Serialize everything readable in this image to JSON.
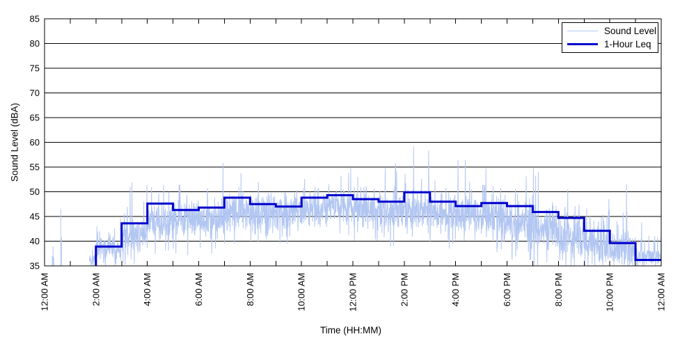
{
  "chart_data": {
    "type": "line",
    "title": "",
    "xlabel": "Time (HH:MM)",
    "ylabel": "Sound Level (dBA)",
    "x_axis": {
      "unit": "hours-from-midnight",
      "range_hours": [
        0,
        24
      ],
      "minor_tick_every_hours": 1,
      "major_tick_every_hours": 2,
      "tick_labels": [
        "12:00 AM",
        "2:00 AM",
        "4:00 AM",
        "6:00 AM",
        "8:00 AM",
        "10:00 AM",
        "12:00 PM",
        "2:00 PM",
        "4:00 PM",
        "6:00 PM",
        "8:00 PM",
        "10:00 PM",
        "12:00 AM"
      ],
      "tick_label_rotation_deg": -90
    },
    "y_axis": {
      "range": [
        35,
        85
      ],
      "tick_step": 5,
      "tick_labels": [
        "35",
        "40",
        "45",
        "50",
        "55",
        "60",
        "65",
        "70",
        "75",
        "80",
        "85"
      ]
    },
    "grid": {
      "horizontal": true,
      "vertical": false,
      "color": "#000000"
    },
    "legend": {
      "position": "top-right-inside",
      "entries": [
        "Sound Level",
        "1-Hour Leq"
      ]
    },
    "series": [
      {
        "name": "Sound Level",
        "color": "#b2c6f2",
        "line_width": 1,
        "kind": "noisy-fast-sound-trace",
        "continuous_from_hour": 1.75,
        "early_isolated_spikes_hour_dba": [
          [
            0.3,
            37.0
          ],
          [
            0.33,
            38.9
          ],
          [
            0.36,
            36.7
          ],
          [
            0.63,
            46.5
          ],
          [
            0.66,
            40.7
          ]
        ],
        "envelope_columns": [
          "start_hour",
          "end_hour",
          "typical_level_dba",
          "typical_half_range_dba",
          "occasional_peak_dba"
        ],
        "hourly_envelope_dba": [
          [
            1.75,
            2,
            36.3,
            1.2,
            39.0
          ],
          [
            2,
            3,
            38.5,
            2.3,
            46.0
          ],
          [
            3,
            4,
            41.5,
            3.3,
            52.5
          ],
          [
            4,
            5,
            44.3,
            3.8,
            52.5
          ],
          [
            5,
            6,
            44.3,
            3.8,
            52.0
          ],
          [
            6,
            7,
            44.5,
            3.8,
            57.5
          ],
          [
            7,
            8,
            46.0,
            3.8,
            55.5
          ],
          [
            8,
            9,
            46.0,
            3.4,
            52.0
          ],
          [
            9,
            10,
            45.6,
            3.4,
            52.0
          ],
          [
            10,
            11,
            46.4,
            3.4,
            53.0
          ],
          [
            11,
            12,
            47.0,
            3.4,
            61.0
          ],
          [
            12,
            13,
            46.5,
            3.4,
            53.5
          ],
          [
            13,
            14,
            46.0,
            3.8,
            56.0
          ],
          [
            14,
            15,
            46.4,
            3.8,
            59.5
          ],
          [
            15,
            16,
            45.6,
            3.8,
            53.0
          ],
          [
            16,
            17,
            45.0,
            3.8,
            56.5
          ],
          [
            17,
            18,
            45.0,
            3.8,
            55.0
          ],
          [
            18,
            19,
            44.0,
            4.2,
            54.5
          ],
          [
            19,
            20,
            42.5,
            4.4,
            55.0
          ],
          [
            20,
            21,
            40.5,
            4.8,
            50.5
          ],
          [
            21,
            22,
            39.5,
            4.5,
            50.0
          ],
          [
            22,
            23,
            38.5,
            4.0,
            52.5
          ],
          [
            23,
            24,
            37.0,
            1.8,
            44.0
          ]
        ]
      },
      {
        "name": "1-Hour Leq",
        "color": "#0000cc",
        "line_width": 3,
        "kind": "hourly-step",
        "step_start_hours": [
          2,
          3,
          4,
          5,
          6,
          7,
          8,
          9,
          10,
          11,
          12,
          13,
          14,
          15,
          16,
          17,
          18,
          19,
          20,
          21,
          22,
          23
        ],
        "leq_dba": [
          38.9,
          43.6,
          47.6,
          46.3,
          46.8,
          48.8,
          47.5,
          47.0,
          48.8,
          49.3,
          48.5,
          48.0,
          49.9,
          48.0,
          47.1,
          47.7,
          47.1,
          45.9,
          44.7,
          42.1,
          39.6,
          36.2
        ],
        "ends_hour": 24
      }
    ]
  }
}
